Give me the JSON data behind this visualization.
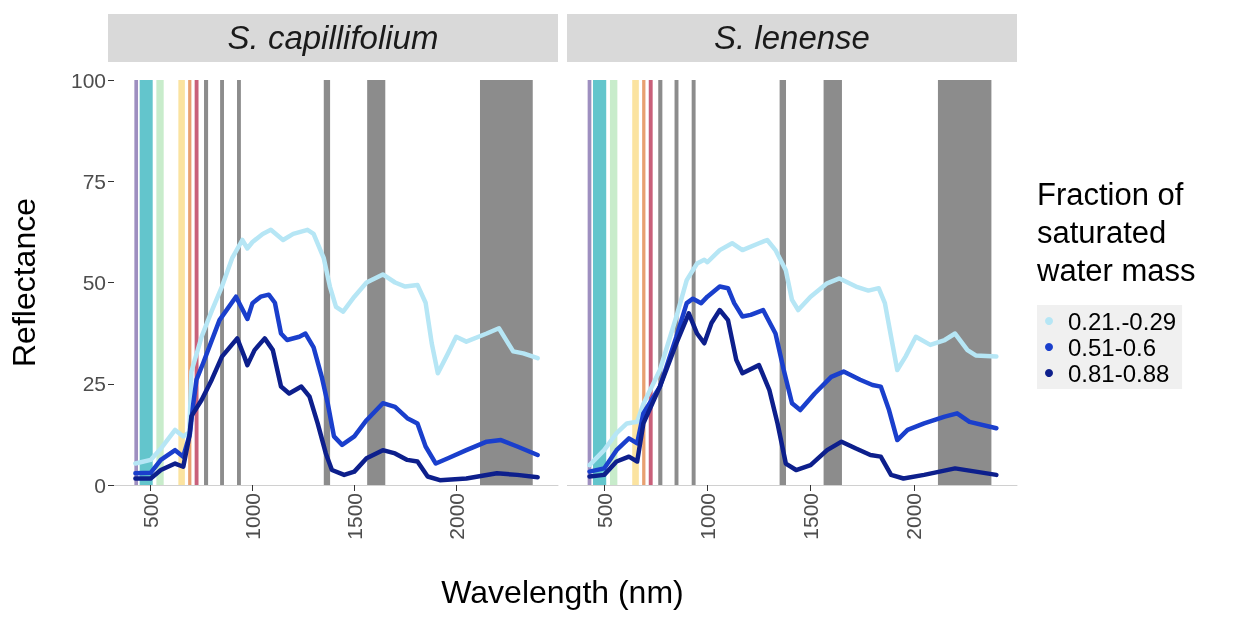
{
  "chart_data": [
    {
      "type": "line",
      "title": "S. capillifolium",
      "xlabel": "Wavelength (nm)",
      "ylabel": "Reflectance",
      "xlim": [
        320,
        2500
      ],
      "xticks": [
        500,
        1000,
        1500,
        2000
      ],
      "ylim": [
        0,
        100
      ],
      "yticks": [
        0,
        25,
        50,
        75,
        100
      ],
      "marker": "none",
      "bands": [
        {
          "axis": "x",
          "from": 420,
          "to": 438,
          "color": "#9e8fc0"
        },
        {
          "axis": "x",
          "from": 446,
          "to": 510,
          "color": "#63c5cc"
        },
        {
          "axis": "x",
          "from": 528,
          "to": 564,
          "color": "#c8eccb"
        },
        {
          "axis": "x",
          "from": 636,
          "to": 668,
          "color": "#fbe3a0"
        },
        {
          "axis": "x",
          "from": 684,
          "to": 700,
          "color": "#e8a070"
        },
        {
          "axis": "x",
          "from": 716,
          "to": 735,
          "color": "#c9607a"
        },
        {
          "axis": "x",
          "from": 762,
          "to": 782,
          "color": "#8c8c8c"
        },
        {
          "axis": "x",
          "from": 841,
          "to": 860,
          "color": "#8c8c8c"
        },
        {
          "axis": "x",
          "from": 924,
          "to": 943,
          "color": "#8c8c8c"
        },
        {
          "axis": "x",
          "from": 1350,
          "to": 1381,
          "color": "#8c8c8c"
        },
        {
          "axis": "x",
          "from": 1563,
          "to": 1652,
          "color": "#8c8c8c"
        },
        {
          "axis": "x",
          "from": 2117,
          "to": 2376,
          "color": "#8c8c8c"
        }
      ],
      "series": [
        {
          "color": "#b6e6f5",
          "x": [
            425,
            500,
            550,
            620,
            660,
            690,
            700,
            750,
            800,
            850,
            900,
            950,
            975,
            1000,
            1050,
            1090,
            1150,
            1200,
            1270,
            1300,
            1350,
            1380,
            1410,
            1445,
            1500,
            1560,
            1640,
            1700,
            1750,
            1810,
            1850,
            1880,
            1910,
            1960,
            2000,
            2050,
            2150,
            2210,
            2280,
            2330,
            2400
          ],
          "values": [
            5.3,
            6.2,
            9,
            13.6,
            12,
            13,
            28,
            36.6,
            43,
            49,
            56,
            60.5,
            58.4,
            60,
            62,
            63,
            60.5,
            62,
            63,
            62,
            56,
            49,
            44,
            42.8,
            46.5,
            50,
            52,
            50,
            49,
            49.4,
            45,
            35,
            27.6,
            32.5,
            36.6,
            35.4,
            37.4,
            38.7,
            33,
            32.5,
            31.3
          ]
        },
        {
          "color": "#1a3fcc",
          "x": [
            425,
            500,
            550,
            620,
            660,
            693,
            709,
            725,
            757,
            838,
            919,
            975,
            1000,
            1040,
            1080,
            1110,
            1140,
            1170,
            1230,
            1260,
            1300,
            1340,
            1370,
            1400,
            1440,
            1500,
            1560,
            1640,
            1700,
            1760,
            1810,
            1850,
            1900,
            1960,
            2050,
            2150,
            2220,
            2300,
            2400
          ],
          "values": [
            2.9,
            3,
            6.2,
            8.6,
            7,
            12.7,
            20,
            26,
            30,
            40.7,
            46.5,
            41,
            44.9,
            46.5,
            47,
            45,
            37.4,
            35.8,
            36.6,
            37.4,
            34,
            26.7,
            20,
            12,
            9.9,
            12,
            16,
            20.2,
            19.3,
            16.5,
            15.2,
            9.5,
            5.3,
            6.6,
            8.6,
            10.7,
            11.1,
            9.5,
            7.4
          ]
        },
        {
          "color": "#0d1f8c",
          "x": [
            425,
            500,
            550,
            620,
            660,
            690,
            700,
            750,
            800,
            850,
            925,
            960,
            975,
            1010,
            1060,
            1100,
            1140,
            1180,
            1240,
            1280,
            1320,
            1360,
            1390,
            1450,
            1500,
            1560,
            1640,
            1700,
            1760,
            1810,
            1860,
            1920,
            2050,
            2200,
            2300,
            2400
          ],
          "values": [
            1.6,
            1.6,
            3.7,
            5.3,
            4.5,
            12,
            17,
            21,
            26,
            31.7,
            36.2,
            31.7,
            29.6,
            33.3,
            36.2,
            33.3,
            24.3,
            22.6,
            24.3,
            21.8,
            15.2,
            7.8,
            3.7,
            2.5,
            3.3,
            6.6,
            8.6,
            7.8,
            6.2,
            5.8,
            2.1,
            1.2,
            1.6,
            2.9,
            2.5,
            1.9
          ]
        }
      ]
    },
    {
      "type": "line",
      "title": "S. lenense",
      "legend_title": "Fraction of saturated water mass",
      "legend": "right",
      "tick_labels": "x",
      "xlim": [
        320,
        2500
      ],
      "xticks": [
        500,
        1000,
        1500,
        2000
      ],
      "ylim": [
        0,
        100
      ],
      "yticks": [
        0,
        25,
        50,
        75,
        100
      ],
      "marker": "none",
      "bands": [
        {
          "axis": "x",
          "from": 420,
          "to": 438,
          "color": "#9e8fc0"
        },
        {
          "axis": "x",
          "from": 446,
          "to": 510,
          "color": "#63c5cc"
        },
        {
          "axis": "x",
          "from": 528,
          "to": 564,
          "color": "#c8eccb"
        },
        {
          "axis": "x",
          "from": 636,
          "to": 668,
          "color": "#fbe3a0"
        },
        {
          "axis": "x",
          "from": 684,
          "to": 700,
          "color": "#e8a070"
        },
        {
          "axis": "x",
          "from": 716,
          "to": 735,
          "color": "#c9607a"
        },
        {
          "axis": "x",
          "from": 762,
          "to": 782,
          "color": "#8c8c8c"
        },
        {
          "axis": "x",
          "from": 841,
          "to": 860,
          "color": "#8c8c8c"
        },
        {
          "axis": "x",
          "from": 924,
          "to": 943,
          "color": "#8c8c8c"
        },
        {
          "axis": "x",
          "from": 1350,
          "to": 1381,
          "color": "#8c8c8c"
        },
        {
          "axis": "x",
          "from": 1563,
          "to": 1652,
          "color": "#8c8c8c"
        },
        {
          "axis": "x",
          "from": 2117,
          "to": 2376,
          "color": "#8c8c8c"
        }
      ],
      "series": [
        {
          "name": "0.21.-0.29",
          "color": "#b6e6f5",
          "x": [
            429,
            500,
            560,
            610,
            660,
            690,
            770,
            850,
            900,
            950,
            985,
            1000,
            1060,
            1120,
            1170,
            1250,
            1290,
            1330,
            1380,
            1410,
            1440,
            1500,
            1580,
            1640,
            1720,
            1780,
            1830,
            1860,
            1890,
            1920,
            1960,
            2010,
            2080,
            2150,
            2200,
            2260,
            2300,
            2400
          ],
          "values": [
            4.9,
            8.6,
            12.8,
            15.2,
            15.6,
            20,
            28.4,
            41.6,
            50.6,
            54.7,
            55.6,
            55,
            58,
            59.7,
            58,
            59.7,
            60.5,
            58,
            53,
            45.7,
            43.2,
            46.5,
            49.8,
            51,
            49,
            48,
            48.6,
            44.9,
            36.6,
            28.4,
            31.7,
            36.6,
            34.6,
            35.8,
            37.4,
            33.3,
            32,
            31.7
          ]
        },
        {
          "name": "0.51-0.6",
          "color": "#1a3fcc",
          "x": [
            429,
            500,
            560,
            620,
            660,
            690,
            770,
            850,
            900,
            930,
            970,
            1000,
            1060,
            1100,
            1130,
            1170,
            1210,
            1270,
            1330,
            1370,
            1410,
            1450,
            1520,
            1600,
            1660,
            1740,
            1800,
            1840,
            1880,
            1920,
            1970,
            2050,
            2150,
            2210,
            2270,
            2400
          ],
          "values": [
            3.3,
            4.1,
            8.6,
            11.5,
            10.3,
            17.7,
            24.3,
            36.6,
            44.9,
            46,
            44.9,
            46.5,
            49,
            48.6,
            44.9,
            41.6,
            42,
            43.2,
            37.4,
            28.4,
            20.2,
            18.5,
            22.6,
            26.7,
            28,
            26,
            24.7,
            24.3,
            18.5,
            11.1,
            13.6,
            15.2,
            16.9,
            17.7,
            15.6,
            14
          ]
        },
        {
          "name": "0.81-0.88",
          "color": "#0d1f8c",
          "x": [
            429,
            500,
            560,
            620,
            660,
            690,
            770,
            850,
            910,
            950,
            985,
            1020,
            1060,
            1100,
            1140,
            1170,
            1250,
            1300,
            1340,
            1380,
            1430,
            1500,
            1580,
            1650,
            1720,
            1790,
            1840,
            1890,
            1950,
            2050,
            2200,
            2300,
            2400
          ],
          "values": [
            2.1,
            2.5,
            5.8,
            7,
            5.8,
            15.2,
            24.3,
            35,
            42.4,
            37.4,
            35,
            40,
            43.2,
            40.7,
            30.9,
            27.6,
            29.6,
            23.5,
            15.2,
            5.3,
            3.7,
            4.9,
            8.6,
            10.7,
            9,
            7.4,
            7,
            2.5,
            1.6,
            2.5,
            4.1,
            3.3,
            2.5
          ]
        }
      ]
    }
  ]
}
